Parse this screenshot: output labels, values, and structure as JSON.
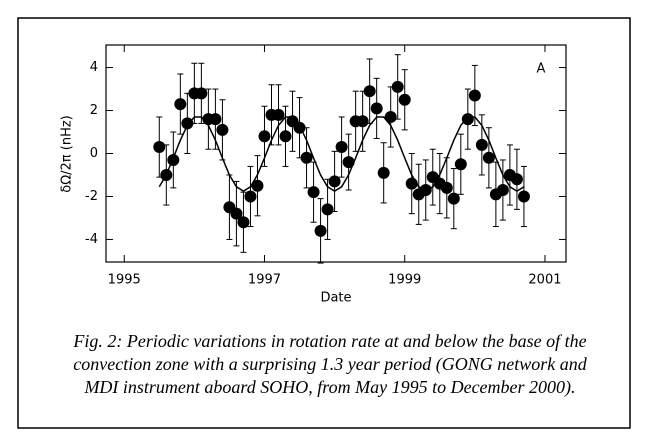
{
  "chart_data": {
    "type": "scatter",
    "xlabel": "Date",
    "ylabel": "δΩ/2π (nHz)",
    "annotation": "A",
    "caption": "Fig. 2: Periodic variations in rotation rate at and below the base of the convection zone with a surprising 1.3 year period (GONG network and MDI instrument aboard SOHO, from May 1995 to December 2000).",
    "xlim": [
      1994.74,
      2001.3
    ],
    "xticks": [
      1995,
      1997,
      1999,
      2001
    ],
    "ylim": [
      -5.05,
      5.05
    ],
    "yticks": [
      -4,
      -2,
      0,
      2,
      4
    ],
    "x": [
      1995.5,
      1995.6,
      1995.7,
      1995.8,
      1995.9,
      1996.0,
      1996.1,
      1996.2,
      1996.3,
      1996.4,
      1996.5,
      1996.6,
      1996.7,
      1996.8,
      1996.9,
      1997.0,
      1997.1,
      1997.2,
      1997.3,
      1997.4,
      1997.5,
      1997.6,
      1997.7,
      1997.8,
      1997.9,
      1998.0,
      1998.1,
      1998.2,
      1998.3,
      1998.4,
      1998.5,
      1998.6,
      1998.7,
      1998.8,
      1998.9,
      1999.0,
      1999.1,
      1999.2,
      1999.3,
      1999.4,
      1999.5,
      1999.6,
      1999.7,
      1999.8,
      1999.9,
      2000.0,
      2000.1,
      2000.2,
      2000.3,
      2000.4,
      2000.5,
      2000.6,
      2000.7
    ],
    "series": [
      {
        "type": "points",
        "color": "#000000",
        "values": [
          0.3,
          -1.0,
          -0.3,
          2.3,
          1.4,
          2.8,
          2.8,
          1.6,
          1.6,
          1.1,
          -2.5,
          -2.8,
          -3.2,
          -2.0,
          -1.5,
          0.8,
          1.8,
          1.8,
          0.8,
          1.5,
          1.2,
          -0.2,
          -1.8,
          -3.6,
          -2.6,
          -1.3,
          0.3,
          -0.4,
          1.5,
          1.5,
          2.9,
          2.1,
          -0.9,
          1.7,
          3.1,
          2.5,
          -1.4,
          -1.9,
          -1.7,
          -1.1,
          -1.4,
          -1.6,
          -2.1,
          -0.5,
          1.6,
          2.7,
          0.4,
          -0.2,
          -1.9,
          -1.7,
          -1.0,
          -1.2,
          -2.0
        ],
        "errors": [
          1.4,
          1.4,
          1.3,
          1.4,
          1.4,
          1.4,
          1.4,
          1.4,
          1.4,
          1.4,
          1.5,
          1.5,
          1.4,
          1.4,
          1.4,
          1.4,
          1.4,
          1.4,
          1.4,
          1.4,
          1.4,
          1.4,
          1.4,
          1.5,
          1.4,
          1.4,
          1.4,
          1.3,
          1.4,
          1.4,
          1.5,
          1.4,
          1.4,
          1.4,
          1.5,
          1.4,
          1.4,
          1.4,
          1.4,
          1.3,
          1.4,
          1.4,
          1.4,
          1.4,
          1.4,
          1.4,
          1.4,
          1.4,
          1.5,
          1.4,
          1.4,
          1.4,
          1.4
        ]
      },
      {
        "type": "line",
        "color": "#000000",
        "values": [
          -1.55,
          -0.99,
          -0.21,
          0.62,
          1.31,
          1.7,
          1.7,
          1.31,
          0.62,
          -0.21,
          -1.0,
          -1.55,
          -1.75,
          -1.55,
          -0.99,
          -0.21,
          0.62,
          1.31,
          1.7,
          1.7,
          1.31,
          0.62,
          -0.21,
          -1.0,
          -1.55,
          -1.75,
          -1.55,
          -0.99,
          -0.21,
          0.62,
          1.31,
          1.7,
          1.7,
          1.31,
          0.62,
          -0.21,
          -1.0,
          -1.55,
          -1.75,
          -1.55,
          -0.99,
          -0.21,
          0.62,
          1.31,
          1.7,
          1.7,
          1.31,
          0.62,
          -0.21,
          -1.0,
          -1.55,
          -1.75,
          -1.55
        ]
      }
    ]
  }
}
